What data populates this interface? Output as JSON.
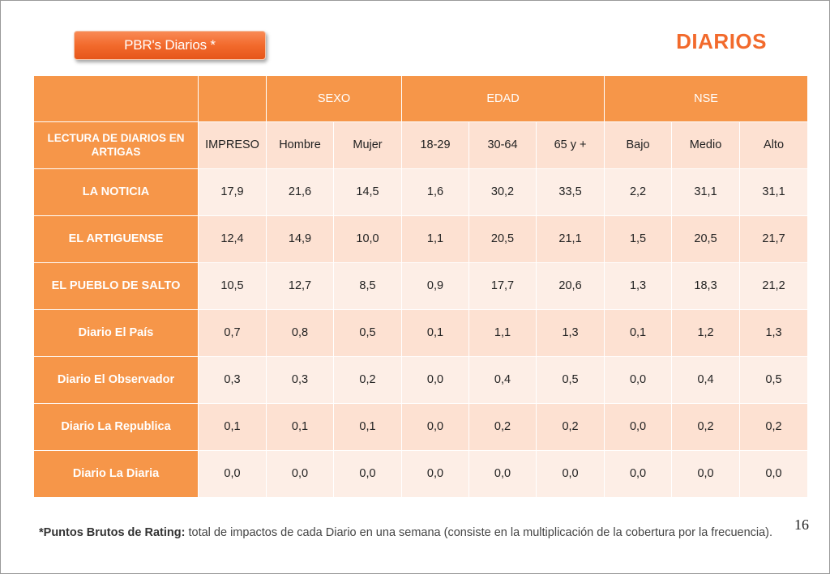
{
  "badge": {
    "label": "PBR's Diarios  *"
  },
  "title": "DIARIOS",
  "table": {
    "groups": [
      {
        "label": "SEXO"
      },
      {
        "label": "EDAD"
      },
      {
        "label": "NSE"
      }
    ],
    "header_row": [
      "LECTURA DE DIARIOS EN ARTIGAS",
      "IMPRESO",
      "Hombre",
      "Mujer",
      "18-29",
      "30-64",
      "65 y +",
      "Bajo",
      "Medio",
      "Alto"
    ],
    "rows": [
      {
        "name": "LA NOTICIA",
        "values": [
          "17,9",
          "21,6",
          "14,5",
          "1,6",
          "30,2",
          "33,5",
          "2,2",
          "31,1",
          "31,1"
        ]
      },
      {
        "name": "EL ARTIGUENSE",
        "values": [
          "12,4",
          "14,9",
          "10,0",
          "1,1",
          "20,5",
          "21,1",
          "1,5",
          "20,5",
          "21,7"
        ]
      },
      {
        "name": "EL PUEBLO DE SALTO",
        "values": [
          "10,5",
          "12,7",
          "8,5",
          "0,9",
          "17,7",
          "20,6",
          "1,3",
          "18,3",
          "21,2"
        ]
      },
      {
        "name": "Diario El País",
        "values": [
          "0,7",
          "0,8",
          "0,5",
          "0,1",
          "1,1",
          "1,3",
          "0,1",
          "1,2",
          "1,3"
        ]
      },
      {
        "name": "Diario El Observador",
        "values": [
          "0,3",
          "0,3",
          "0,2",
          "0,0",
          "0,4",
          "0,5",
          "0,0",
          "0,4",
          "0,5"
        ]
      },
      {
        "name": "Diario La Republica",
        "values": [
          "0,1",
          "0,1",
          "0,1",
          "0,0",
          "0,2",
          "0,2",
          "0,0",
          "0,2",
          "0,2"
        ]
      },
      {
        "name": "Diario La Diaria",
        "values": [
          "0,0",
          "0,0",
          "0,0",
          "0,0",
          "0,0",
          "0,0",
          "0,0",
          "0,0",
          "0,0"
        ]
      }
    ]
  },
  "footnote": {
    "term": "*Puntos Brutos de Rating:",
    "text": " total de impactos de cada Diario en una semana (consiste en la multiplicación de la cobertura por la frecuencia)."
  },
  "page_number": "16",
  "colors": {
    "accent": "#f26a2c",
    "header_fill": "#f69649",
    "row_fill_a": "#fde1d2",
    "row_fill_b": "#fdeee6"
  }
}
